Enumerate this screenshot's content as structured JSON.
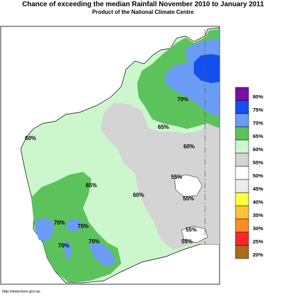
{
  "header": {
    "title": "Chance of exceeding the median Rainfall November 2010 to January 2011",
    "subtitle": "Product of the National Climate Centre"
  },
  "map_labels": [
    "70%",
    "65%",
    "60%",
    "60%",
    "65%",
    "60%",
    "55%",
    "55%",
    "70%",
    "70%",
    "70%",
    "70%",
    "55%",
    "55%"
  ],
  "legend": {
    "items": [
      {
        "label": "80%",
        "color": "#7a0fa6"
      },
      {
        "label": "75%",
        "color": "#1450f0"
      },
      {
        "label": "70%",
        "color": "#6b9cf5"
      },
      {
        "label": "65%",
        "color": "#5cc25c"
      },
      {
        "label": "60%",
        "color": "#ccf7cc"
      },
      {
        "label": "55%",
        "color": "#d4d4d4"
      },
      {
        "label": "50%",
        "color": "#ffffff"
      },
      {
        "label": "45%",
        "color": "#ececec"
      },
      {
        "label": "40%",
        "color": "#ffff3c"
      },
      {
        "label": "35%",
        "color": "#ffc23c"
      },
      {
        "label": "30%",
        "color": "#ff8c28"
      },
      {
        "label": "25%",
        "color": "#ff2828"
      },
      {
        "label": "20%",
        "color": "#a86c1c"
      }
    ]
  },
  "footer": {
    "credit": "http://www.bom.gov.au"
  }
}
